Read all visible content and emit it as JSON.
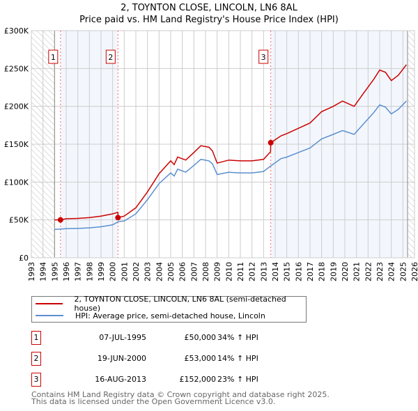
{
  "chart_data": {
    "type": "line",
    "title": "2, TOYNTON CLOSE, LINCOLN, LN6 8AL",
    "subtitle": "Price paid vs. HM Land Registry's House Price Index (HPI)",
    "xlim": [
      1993,
      2026
    ],
    "ylim": [
      0,
      300000
    ],
    "x_ticks": [
      "1993",
      "1994",
      "1995",
      "1996",
      "1997",
      "1998",
      "1999",
      "2000",
      "2001",
      "2002",
      "2003",
      "2004",
      "2005",
      "2006",
      "2007",
      "2008",
      "2009",
      "2010",
      "2011",
      "2012",
      "2013",
      "2014",
      "2015",
      "2016",
      "2017",
      "2018",
      "2019",
      "2020",
      "2021",
      "2022",
      "2023",
      "2024",
      "2025",
      "2026"
    ],
    "y_ticks": [
      {
        "v": 0,
        "label": "£0"
      },
      {
        "v": 50000,
        "label": "£50K"
      },
      {
        "v": 100000,
        "label": "£100K"
      },
      {
        "v": 150000,
        "label": "£150K"
      },
      {
        "v": 200000,
        "label": "£200K"
      },
      {
        "v": 250000,
        "label": "£250K"
      },
      {
        "v": 300000,
        "label": "£300K"
      }
    ],
    "grid": true,
    "hatched_ranges": [
      [
        1993,
        1995
      ],
      [
        2025.4,
        2026
      ]
    ],
    "shaded_ranges": [
      [
        1995.51,
        2000.46
      ],
      [
        2013.62,
        2025.4
      ]
    ],
    "series": [
      {
        "name": "2, TOYNTON CLOSE, LINCOLN, LN6 8AL (semi-detached house)",
        "color": "#cc0000",
        "points": [
          [
            1995,
            50000
          ],
          [
            1995.51,
            50000
          ],
          [
            1996,
            51500
          ],
          [
            1997,
            52000
          ],
          [
            1998,
            53000
          ],
          [
            1999,
            55000
          ],
          [
            2000,
            58000
          ],
          [
            2000.45,
            60000
          ],
          [
            2000.47,
            53000
          ],
          [
            2001,
            55000
          ],
          [
            2002,
            66000
          ],
          [
            2003,
            87000
          ],
          [
            2004,
            111000
          ],
          [
            2005,
            128000
          ],
          [
            2005.3,
            123000
          ],
          [
            2005.6,
            133000
          ],
          [
            2006.3,
            129000
          ],
          [
            2007,
            139000
          ],
          [
            2007.6,
            148000
          ],
          [
            2008.3,
            146000
          ],
          [
            2008.6,
            141000
          ],
          [
            2009,
            125000
          ],
          [
            2010,
            129000
          ],
          [
            2011,
            128000
          ],
          [
            2012,
            128000
          ],
          [
            2013,
            130000
          ],
          [
            2013.6,
            140000
          ],
          [
            2013.62,
            152000
          ],
          [
            2014.5,
            161000
          ],
          [
            2015,
            164000
          ],
          [
            2016,
            171000
          ],
          [
            2017,
            178000
          ],
          [
            2018,
            193000
          ],
          [
            2019,
            200000
          ],
          [
            2019.8,
            207000
          ],
          [
            2020.8,
            200000
          ],
          [
            2021.5,
            215000
          ],
          [
            2022.5,
            236000
          ],
          [
            2023,
            248000
          ],
          [
            2023.5,
            245000
          ],
          [
            2024,
            234000
          ],
          [
            2024.6,
            241000
          ],
          [
            2025.3,
            255000
          ]
        ]
      },
      {
        "name": "HPI: Average price, semi-detached house, Lincoln",
        "color": "#5b8fd0",
        "points": [
          [
            1995,
            37400
          ],
          [
            1996,
            38400
          ],
          [
            1997,
            38800
          ],
          [
            1998,
            39500
          ],
          [
            1999,
            41000
          ],
          [
            2000,
            43500
          ],
          [
            2000.5,
            47800
          ],
          [
            2001,
            48500
          ],
          [
            2002,
            58000
          ],
          [
            2003,
            76700
          ],
          [
            2004,
            98000
          ],
          [
            2005,
            112000
          ],
          [
            2005.3,
            108000
          ],
          [
            2005.6,
            117000
          ],
          [
            2006.3,
            113000
          ],
          [
            2007,
            122000
          ],
          [
            2007.6,
            130000
          ],
          [
            2008.3,
            128000
          ],
          [
            2008.6,
            124000
          ],
          [
            2009,
            110000
          ],
          [
            2010,
            113000
          ],
          [
            2011,
            112000
          ],
          [
            2012,
            112000
          ],
          [
            2013,
            114000
          ],
          [
            2013.6,
            121000
          ],
          [
            2014.5,
            131000
          ],
          [
            2015,
            133000
          ],
          [
            2016,
            139000
          ],
          [
            2017,
            145000
          ],
          [
            2018,
            157000
          ],
          [
            2019,
            163000
          ],
          [
            2019.8,
            168000
          ],
          [
            2020.8,
            163000
          ],
          [
            2021.5,
            175000
          ],
          [
            2022.5,
            192000
          ],
          [
            2023,
            202000
          ],
          [
            2023.5,
            199000
          ],
          [
            2024,
            190000
          ],
          [
            2024.6,
            196000
          ],
          [
            2025.3,
            207000
          ]
        ]
      }
    ],
    "sales": [
      {
        "label": "1",
        "x": 1995.51,
        "y": 50000
      },
      {
        "label": "2",
        "x": 2000.46,
        "y": 53000
      },
      {
        "label": "3",
        "x": 2013.62,
        "y": 152000
      }
    ]
  },
  "legend": {
    "red": "2, TOYNTON CLOSE, LINCOLN, LN6 8AL (semi-detached house)",
    "blue": "HPI: Average price, semi-detached house, Lincoln"
  },
  "table": [
    {
      "num": "1",
      "date": "07-JUL-1995",
      "price": "£50,000",
      "hpi": "34% ↑ HPI"
    },
    {
      "num": "2",
      "date": "19-JUN-2000",
      "price": "£53,000",
      "hpi": "14% ↑ HPI"
    },
    {
      "num": "3",
      "date": "16-AUG-2013",
      "price": "£152,000",
      "hpi": "23% ↑ HPI"
    }
  ],
  "footer": [
    "Contains HM Land Registry data © Crown copyright and database right 2025.",
    "This data is licensed under the Open Government Licence v3.0."
  ]
}
